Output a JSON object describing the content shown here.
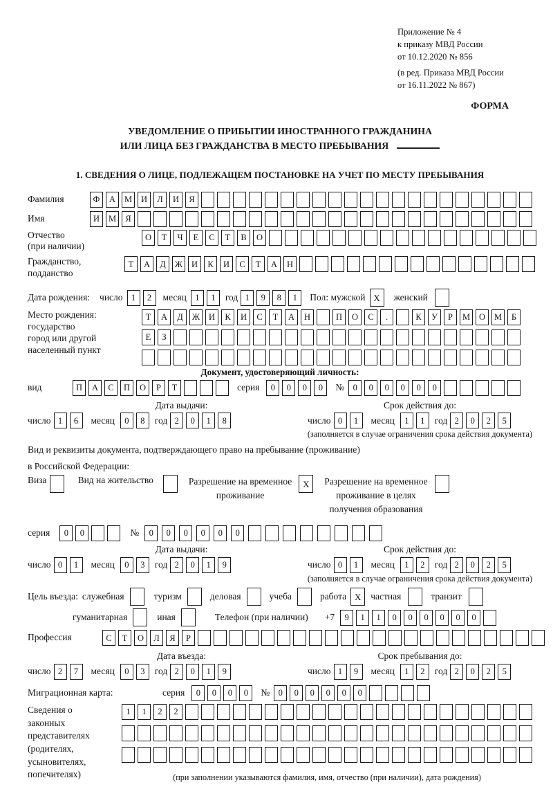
{
  "header": {
    "annex": [
      "Приложение № 4",
      "к приказу МВД России",
      "от 10.12.2020 № 856"
    ],
    "edition": [
      "(в ред. Приказа МВД России",
      "от 16.11.2022 № 867)"
    ],
    "forma": "ФОРМА",
    "title1": "УВЕДОМЛЕНИЕ О ПРИБЫТИИ ИНОСТРАННОГО ГРАЖДАНИНА",
    "title2": "ИЛИ ЛИЦА БЕЗ ГРАЖДАНСТВА В МЕСТО ПРЕБЫВАНИЯ",
    "section": "1. СВЕДЕНИЯ О ЛИЦЕ, ПОДЛЕЖАЩЕМ ПОСТАНОВКЕ НА УЧЕТ ПО МЕСТУ ПРЕБЫВАНИЯ"
  },
  "labels": {
    "surname": "Фамилия",
    "name": "Имя",
    "patronymic1": "Отчество",
    "patronymic2": "(при наличии)",
    "citizenship1": "Гражданство,",
    "citizenship2": "подданство",
    "birth_date": "Дата рождения:",
    "day": "число",
    "month": "месяц",
    "year": "год",
    "sex": "Пол: мужской",
    "female": "женский",
    "birthplace1": "Место рождения:",
    "birthplace2": "государство",
    "birthplace3": "город или другой",
    "birthplace4": "населенный пункт",
    "identity_doc": "Документ, удостоверяющий личность:",
    "doc_type": "вид",
    "series": "серия",
    "number": "№",
    "issue_date": "Дата выдачи:",
    "valid_until": "Срок действия до:",
    "valid_note": "(заполняется в случае ограничения срока действия документа)",
    "residence_doc1": "Вид и реквизиты документа, подтверждающего право на пребывание (проживание)",
    "residence_doc2": "в Российской Федерации:",
    "visa": "Виза",
    "residence_permit": "Вид на жительство",
    "rvp1": "Разрешение на временное",
    "rvp2": "проживание",
    "rvp_edu1": "Разрешение на временное",
    "rvp_edu2": "проживание в целях",
    "rvp_edu3": "получения образования",
    "purpose_label": "Цель въезда:",
    "official": "служебная",
    "tourism": "туризм",
    "business": "деловая",
    "study": "учеба",
    "work": "работа",
    "private": "частная",
    "transit": "транзит",
    "humanitarian": "гуманитарная",
    "other": "иная",
    "phone": "Телефон (при наличии)",
    "phone_code": "+7",
    "profession": "Профессия",
    "entry_date": "Дата въезда:",
    "stay_until": "Срок пребывания до:",
    "migration_card": "Миграционная карта:",
    "rep1": "Сведения о",
    "rep2": "законных",
    "rep3": "представителях",
    "rep4": "(родителях,",
    "rep5": "усыновителях,",
    "rep6": "попечителях)",
    "rep_note": "(при заполнении указываются фамилия, имя, отчество (при наличии), дата рождения)"
  },
  "fields": {
    "surname": {
      "v": "ФАМИЛИЯ",
      "n": 28
    },
    "name": {
      "v": "ИМЯ",
      "n": 28
    },
    "patronymic": {
      "v": "ОТЧЕСТВО",
      "n": 25
    },
    "citizenship": {
      "v": "ТАДЖИКИСТАН",
      "n": 26
    },
    "birth_day": {
      "v": "12",
      "n": 2
    },
    "birth_month": {
      "v": "11",
      "n": 2
    },
    "birth_year": {
      "v": "1981",
      "n": 4
    },
    "sex_male": {
      "v": "X",
      "n": 1
    },
    "sex_female": {
      "v": "",
      "n": 1
    },
    "birthplace_r1": {
      "v": "ТАДЖИКИСТАН ПОС. КУРМОМБ",
      "n": 24
    },
    "birthplace_r2": {
      "v": "ЕЗ",
      "n": 24
    },
    "birthplace_r3": {
      "v": "",
      "n": 24
    },
    "id_type": {
      "v": "ПАСПОРТ",
      "n": 10
    },
    "id_series": {
      "v": "0000",
      "n": 4
    },
    "id_number": {
      "v": "000000",
      "n": 11
    },
    "id_issue_day": {
      "v": "16",
      "n": 2
    },
    "id_issue_month": {
      "v": "08",
      "n": 2
    },
    "id_issue_year": {
      "v": "2018",
      "n": 4
    },
    "id_valid_day": {
      "v": "01",
      "n": 2
    },
    "id_valid_month": {
      "v": "11",
      "n": 2
    },
    "id_valid_year": {
      "v": "2025",
      "n": 4
    },
    "cb_visa": {
      "v": "",
      "n": 1
    },
    "cb_residence_permit": {
      "v": "",
      "n": 1
    },
    "cb_rvp": {
      "v": "X",
      "n": 1
    },
    "cb_rvp_edu": {
      "v": "",
      "n": 1
    },
    "res_series": {
      "v": "00",
      "n": 4
    },
    "res_number": {
      "v": "000000",
      "n": 14
    },
    "res_issue_day": {
      "v": "01",
      "n": 2
    },
    "res_issue_month": {
      "v": "03",
      "n": 2
    },
    "res_issue_year": {
      "v": "2019",
      "n": 4
    },
    "res_valid_day": {
      "v": "01",
      "n": 2
    },
    "res_valid_month": {
      "v": "12",
      "n": 2
    },
    "res_valid_year": {
      "v": "2025",
      "n": 4
    },
    "cb_official": {
      "v": "",
      "n": 1
    },
    "cb_tourism": {
      "v": "",
      "n": 1
    },
    "cb_business": {
      "v": "",
      "n": 1
    },
    "cb_study": {
      "v": "",
      "n": 1
    },
    "cb_work": {
      "v": "X",
      "n": 1
    },
    "cb_private": {
      "v": "",
      "n": 1
    },
    "cb_transit": {
      "v": "",
      "n": 1
    },
    "cb_humanitarian": {
      "v": "",
      "n": 1
    },
    "cb_other": {
      "v": "",
      "n": 1
    },
    "phone": {
      "v": "911000000",
      "n": 10
    },
    "profession": {
      "v": "СТОЛЯР",
      "n": 28
    },
    "entry_day": {
      "v": "27",
      "n": 2
    },
    "entry_month": {
      "v": "03",
      "n": 2
    },
    "entry_year": {
      "v": "2019",
      "n": 4
    },
    "stay_day": {
      "v": "19",
      "n": 2
    },
    "stay_month": {
      "v": "12",
      "n": 2
    },
    "stay_year": {
      "v": "2025",
      "n": 4
    },
    "mig_series": {
      "v": "0000",
      "n": 4
    },
    "mig_number": {
      "v": "000000",
      "n": 10
    },
    "rep_r1": {
      "v": "1122",
      "n": 26
    },
    "rep_r2": {
      "v": "",
      "n": 26
    },
    "rep_r3": {
      "v": "",
      "n": 26
    }
  }
}
